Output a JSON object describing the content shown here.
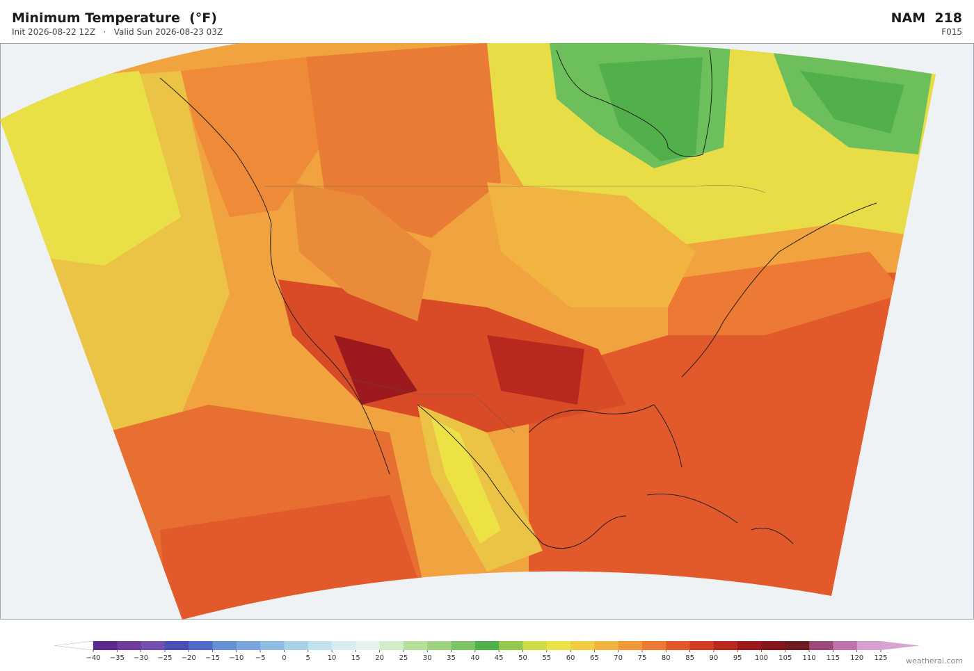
{
  "header": {
    "title": "Minimum Temperature  (°F)",
    "subtitle": "Init 2026-08-22 12Z   ·   Valid Sun 2026-08-23 03Z",
    "model": "NAM  218",
    "forecast_hour": "F015"
  },
  "colorbar": {
    "ticks": [
      {
        "value": -40,
        "label": "−40"
      },
      {
        "value": -35,
        "label": "−35"
      },
      {
        "value": -30,
        "label": "−30"
      },
      {
        "value": -25,
        "label": "−25"
      },
      {
        "value": -20,
        "label": "−20"
      },
      {
        "value": -15,
        "label": "−15"
      },
      {
        "value": -10,
        "label": "−10"
      },
      {
        "value": -5,
        "label": "−5"
      },
      0,
      5,
      10,
      15,
      20,
      25,
      30,
      35,
      40,
      45,
      50,
      55,
      60,
      65,
      70,
      75,
      80,
      85,
      90,
      95,
      100,
      105,
      110,
      115,
      120,
      125
    ],
    "colors": [
      "#5b2a8c",
      "#6e3d9a",
      "#7150b0",
      "#4a4fb8",
      "#4f6acb",
      "#6690d4",
      "#7aa4da",
      "#8fbde2",
      "#a9d2e9",
      "#c2e2ee",
      "#d7ecf0",
      "#e6f3ed",
      "#d5ecc9",
      "#b6df9b",
      "#9ed481",
      "#7dc466",
      "#52b04c",
      "#92c94e",
      "#d2dc4a",
      "#ece245",
      "#f1cd44",
      "#f2b440",
      "#f0993b",
      "#ec7a35",
      "#e4572a",
      "#d13d24",
      "#b8281f",
      "#9c1a1d",
      "#84161c",
      "#6e1a22",
      "#9c4a7a",
      "#bf73ac",
      "#d7a0cf"
    ],
    "under_color": "#ffffff",
    "over_color": "#d8a5d2"
  },
  "watermark": "weatherai.com"
}
